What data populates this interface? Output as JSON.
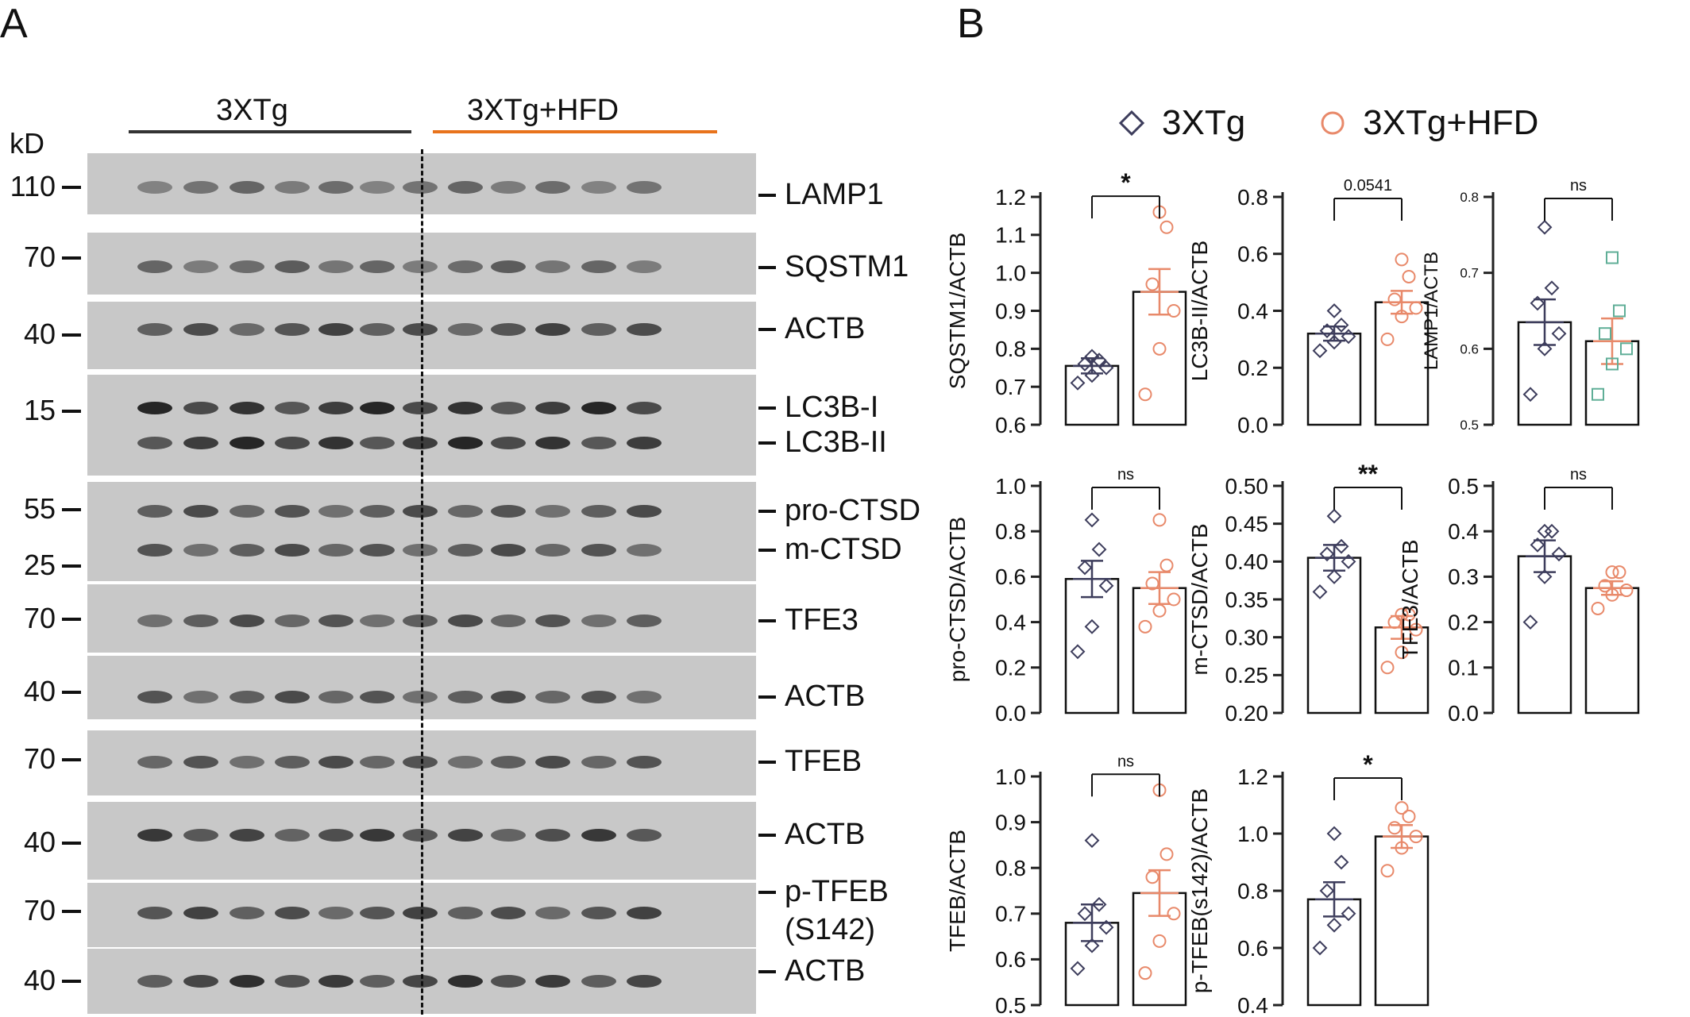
{
  "panels": {
    "a": "A",
    "b": "B"
  },
  "blot": {
    "groups": [
      {
        "label": "3XTg",
        "color": "#333333"
      },
      {
        "label": "3XTg+HFD",
        "color": "#e8731c"
      }
    ],
    "kd_header": "kD",
    "strips": [
      {
        "markers": [
          "110"
        ],
        "targets": [
          "LAMP1"
        ]
      },
      {
        "markers": [
          "70"
        ],
        "targets": [
          "SQSTM1"
        ]
      },
      {
        "markers": [
          "40"
        ],
        "targets": [
          "ACTB"
        ]
      },
      {
        "markers": [
          "15"
        ],
        "targets": [
          "LC3B-I",
          "LC3B-II"
        ]
      },
      {
        "markers": [
          "55",
          "25"
        ],
        "targets": [
          "pro-CTSD",
          "m-CTSD"
        ]
      },
      {
        "markers": [
          "70"
        ],
        "targets": [
          "TFE3"
        ]
      },
      {
        "markers": [
          "40"
        ],
        "targets": [
          "ACTB"
        ]
      },
      {
        "markers": [
          "70"
        ],
        "targets": [
          "TFEB"
        ]
      },
      {
        "markers": [
          "40"
        ],
        "targets": [
          "ACTB"
        ]
      },
      {
        "markers": [
          "70"
        ],
        "targets": [
          "p-TFEB",
          "(S142)"
        ]
      },
      {
        "markers": [
          "40"
        ],
        "targets": [
          "ACTB"
        ]
      }
    ]
  },
  "legend": {
    "items": [
      {
        "label": "3XTg",
        "marker": "diamond",
        "color": "#3d3d5c"
      },
      {
        "label": "3XTg+HFD",
        "marker": "circle",
        "color": "#e8896a"
      }
    ]
  },
  "chart_data": [
    {
      "type": "bar",
      "ylabel": "SQSTM1/ACTB",
      "ylim": [
        0.6,
        1.2
      ],
      "yticks": [
        "0.6",
        "0.7",
        "0.8",
        "0.9",
        "1.0",
        "1.1",
        "1.2"
      ],
      "significance": "*",
      "series": [
        {
          "name": "3XTg",
          "mean": 0.755,
          "sem": 0.02,
          "points": [
            0.71,
            0.73,
            0.75,
            0.76,
            0.77,
            0.78
          ]
        },
        {
          "name": "3XTg+HFD",
          "mean": 0.95,
          "sem": 0.06,
          "points": [
            0.68,
            0.8,
            0.9,
            0.97,
            1.12,
            1.16
          ]
        }
      ]
    },
    {
      "type": "bar",
      "ylabel": "LC3B-II/ACTB",
      "ylim": [
        0.0,
        0.8
      ],
      "yticks": [
        "0.0",
        "0.2",
        "0.4",
        "0.6",
        "0.8"
      ],
      "significance": "0.0541",
      "series": [
        {
          "name": "3XTg",
          "mean": 0.32,
          "sem": 0.025,
          "points": [
            0.26,
            0.29,
            0.31,
            0.33,
            0.35,
            0.4
          ]
        },
        {
          "name": "3XTg+HFD",
          "mean": 0.43,
          "sem": 0.04,
          "points": [
            0.3,
            0.38,
            0.41,
            0.44,
            0.52,
            0.58
          ]
        }
      ]
    },
    {
      "type": "bar",
      "ylabel": "LAMP1/ACTB",
      "ylim": [
        0.5,
        0.8
      ],
      "yticks": [
        "0.5",
        "0.6",
        "0.7",
        "0.8"
      ],
      "significance": "ns",
      "series": [
        {
          "name": "3XTg",
          "mean": 0.635,
          "sem": 0.03,
          "points": [
            0.54,
            0.6,
            0.62,
            0.66,
            0.68,
            0.76
          ]
        },
        {
          "name": "3XTg+HFD",
          "mean": 0.61,
          "sem": 0.03,
          "points": [
            0.54,
            0.58,
            0.6,
            0.62,
            0.65,
            0.72
          ]
        }
      ]
    },
    {
      "type": "bar",
      "ylabel": "pro-CTSD/ACTB",
      "ylim": [
        0.0,
        1.0
      ],
      "yticks": [
        "0.0",
        "0.2",
        "0.4",
        "0.6",
        "0.8",
        "1.0"
      ],
      "significance": "ns",
      "series": [
        {
          "name": "3XTg",
          "mean": 0.59,
          "sem": 0.08,
          "points": [
            0.27,
            0.38,
            0.56,
            0.64,
            0.72,
            0.85
          ]
        },
        {
          "name": "3XTg+HFD",
          "mean": 0.55,
          "sem": 0.07,
          "points": [
            0.38,
            0.45,
            0.5,
            0.57,
            0.65,
            0.85
          ]
        }
      ]
    },
    {
      "type": "bar",
      "ylabel": "m-CTSD/ACTB",
      "ylim": [
        0.2,
        0.5
      ],
      "yticks": [
        "0.20",
        "0.25",
        "0.30",
        "0.35",
        "0.40",
        "0.45",
        "0.50"
      ],
      "significance": "**",
      "series": [
        {
          "name": "3XTg",
          "mean": 0.405,
          "sem": 0.017,
          "points": [
            0.36,
            0.38,
            0.4,
            0.41,
            0.42,
            0.46
          ]
        },
        {
          "name": "3XTg+HFD",
          "mean": 0.313,
          "sem": 0.015,
          "points": [
            0.26,
            0.28,
            0.31,
            0.32,
            0.33,
            0.33
          ]
        }
      ]
    },
    {
      "type": "bar",
      "ylabel": "TFE3/ACTB",
      "ylim": [
        0.0,
        0.5
      ],
      "yticks": [
        "0.0",
        "0.1",
        "0.2",
        "0.3",
        "0.4",
        "0.5"
      ],
      "significance": "ns",
      "series": [
        {
          "name": "3XTg",
          "mean": 0.345,
          "sem": 0.035,
          "points": [
            0.2,
            0.3,
            0.35,
            0.37,
            0.4,
            0.4
          ]
        },
        {
          "name": "3XTg+HFD",
          "mean": 0.275,
          "sem": 0.015,
          "points": [
            0.23,
            0.26,
            0.27,
            0.28,
            0.31,
            0.31
          ]
        }
      ]
    },
    {
      "type": "bar",
      "ylabel": "TFEB/ACTB",
      "ylim": [
        0.5,
        1.0
      ],
      "yticks": [
        "0.5",
        "0.6",
        "0.7",
        "0.8",
        "0.9",
        "1.0"
      ],
      "significance": "ns",
      "series": [
        {
          "name": "3XTg",
          "mean": 0.68,
          "sem": 0.04,
          "points": [
            0.58,
            0.63,
            0.67,
            0.7,
            0.72,
            0.86
          ]
        },
        {
          "name": "3XTg+HFD",
          "mean": 0.745,
          "sem": 0.05,
          "points": [
            0.57,
            0.64,
            0.7,
            0.78,
            0.83,
            0.97
          ]
        }
      ]
    },
    {
      "type": "bar",
      "ylabel": "p-TFEB(s142)/ACTB",
      "ylim": [
        0.4,
        1.2
      ],
      "yticks": [
        "0.4",
        "0.6",
        "0.8",
        "1.0",
        "1.2"
      ],
      "significance": "*",
      "series": [
        {
          "name": "3XTg",
          "mean": 0.77,
          "sem": 0.06,
          "points": [
            0.6,
            0.68,
            0.72,
            0.8,
            0.9,
            1.0
          ]
        },
        {
          "name": "3XTg+HFD",
          "mean": 0.99,
          "sem": 0.04,
          "points": [
            0.87,
            0.95,
            0.99,
            1.02,
            1.06,
            1.09
          ]
        }
      ]
    }
  ]
}
